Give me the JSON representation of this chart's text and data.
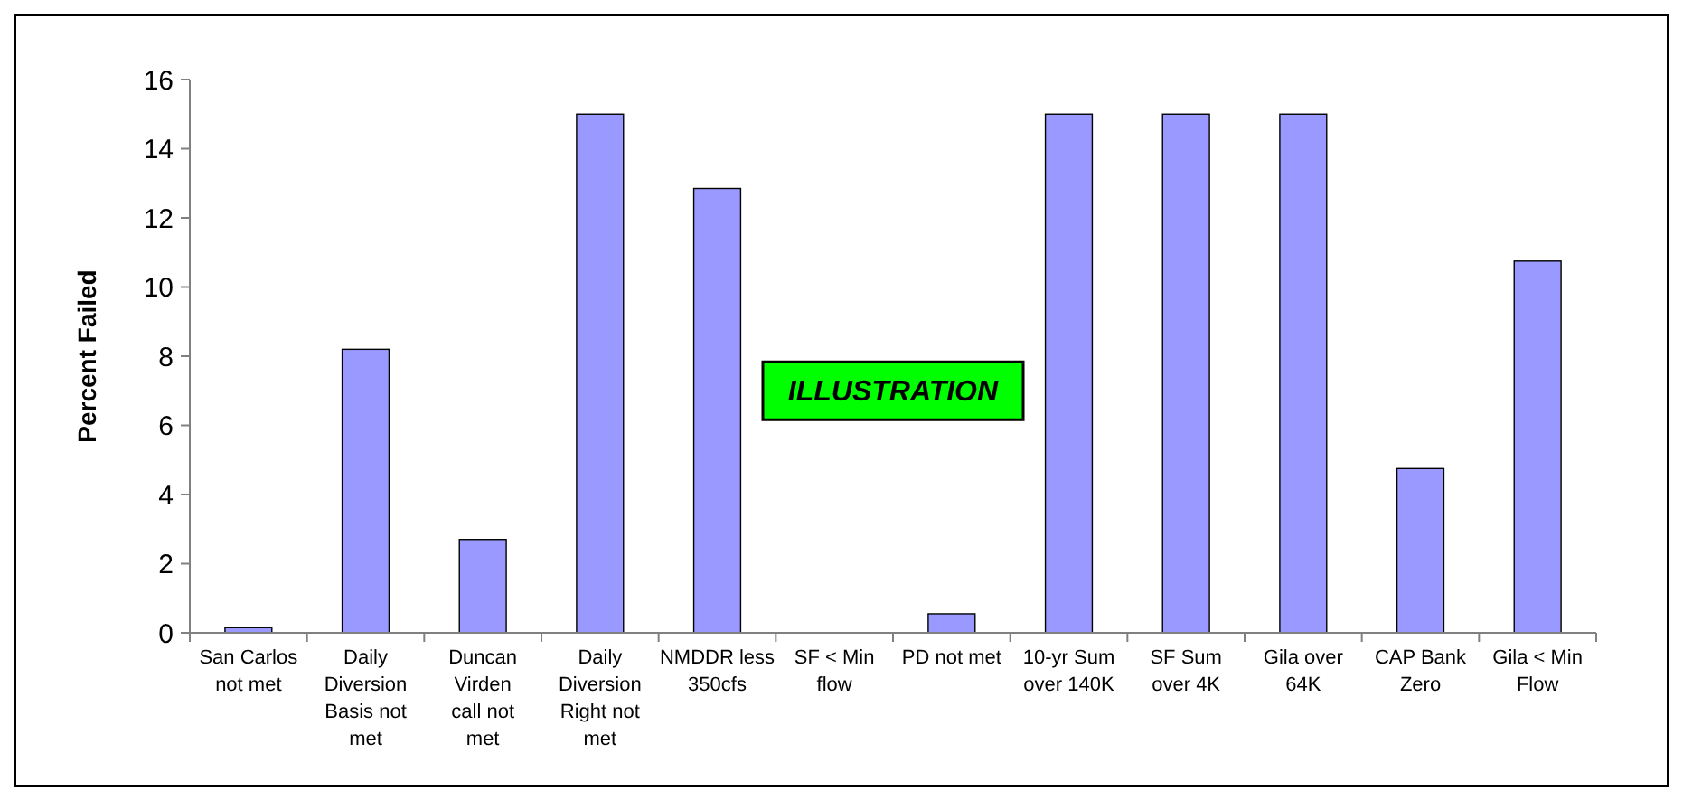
{
  "chart_data": {
    "type": "bar",
    "ylabel": "Percent Failed",
    "categories": [
      "San Carlos not met",
      "Daily Diversion Basis not met",
      "Duncan Virden call not met",
      "Daily Diversion Right not met",
      "NMDDR less 350cfs",
      "SF < Min flow",
      "PD not met",
      "10-yr Sum over 140K",
      "SF Sum over 4K",
      "Gila over 64K",
      "CAP Bank Zero",
      "Gila < Min Flow"
    ],
    "values": [
      0.15,
      8.2,
      2.7,
      15,
      12.85,
      0,
      0.55,
      15,
      15,
      15,
      4.75,
      10.75
    ],
    "color": "#9999ff",
    "ylim": [
      0,
      16
    ],
    "yticks": [
      0,
      2,
      4,
      6,
      8,
      10,
      12,
      14,
      16
    ],
    "grid": false,
    "annotations": [
      "ILLUSTRATION"
    ]
  }
}
